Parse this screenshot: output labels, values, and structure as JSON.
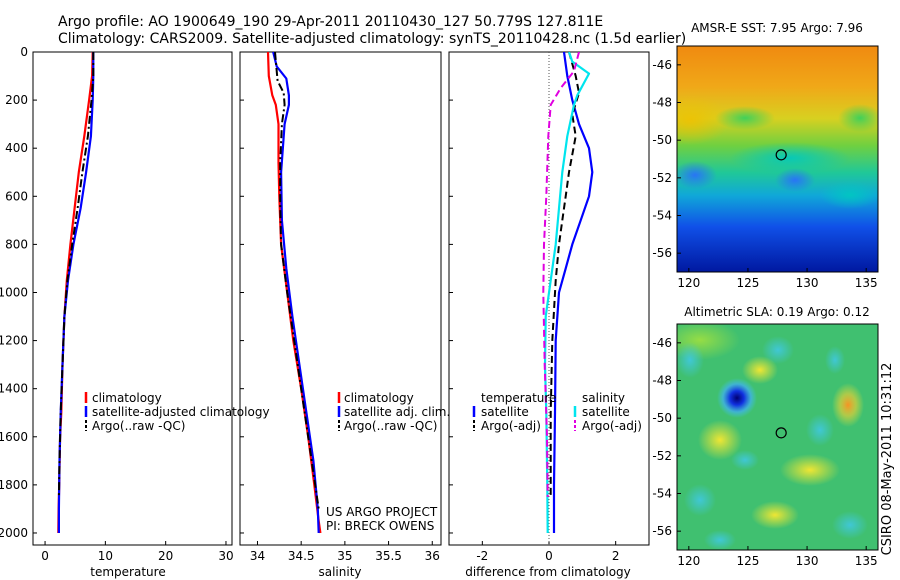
{
  "header": {
    "line1": "Argo profile: AO 1900649_190 29-Apr-2011 20110430_127 50.779S 127.811E",
    "line2": "Climatology: CARS2009. Satellite-adjusted climatology: synTS_20110428.nc (1.5d earlier)"
  },
  "side_text": "CSIRO 08-May-2011 10:31:12",
  "credit": {
    "line1": "US ARGO PROJECT",
    "line2": "PI: BRECK OWENS"
  },
  "colors": {
    "climatology": "#ff0000",
    "satellite": "#0000ff",
    "argo": "#000000",
    "sat_diff": "#00e5ee",
    "argo_diff": "#e000e0"
  },
  "chart_data": [
    {
      "type": "line",
      "xlabel": "temperature",
      "ylabel": "",
      "xlim": [
        -2,
        31
      ],
      "ylim": [
        2050,
        0
      ],
      "y_reversed": true,
      "xticks": [
        0,
        10,
        20,
        30
      ],
      "yticks": [
        0,
        200,
        400,
        600,
        800,
        1000,
        1200,
        1400,
        1600,
        1800,
        2000
      ],
      "legend": {
        "placement": "lower-right",
        "entries": [
          "climatology",
          "satellite-adjusted climatology",
          "Argo(..raw -QC)"
        ]
      },
      "series": [
        {
          "name": "climatology",
          "color": "#ff0000",
          "dash": "solid",
          "x": [
            7.9,
            7.8,
            7.3,
            6.5,
            5.6,
            4.9,
            4.2,
            3.6,
            3.2,
            2.9,
            2.7,
            2.5,
            2.35,
            2.25,
            2.2
          ],
          "y": [
            0,
            100,
            200,
            350,
            500,
            650,
            800,
            950,
            1100,
            1300,
            1500,
            1600,
            1800,
            1900,
            2000
          ]
        },
        {
          "name": "satellite-adjusted climatology",
          "color": "#0000ff",
          "dash": "solid",
          "x": [
            8.0,
            8.0,
            7.9,
            7.6,
            6.8,
            5.9,
            4.7,
            3.8,
            3.2,
            2.9,
            2.6,
            2.4,
            2.3,
            2.3
          ],
          "y": [
            0,
            100,
            200,
            350,
            500,
            650,
            800,
            950,
            1100,
            1300,
            1500,
            1700,
            1900,
            2000
          ]
        },
        {
          "name": "Argo(..raw -QC)",
          "color": "#000000",
          "dash": "dashdot",
          "x": [
            8.0,
            8.0,
            7.7,
            7.1,
            6.2,
            5.4,
            4.5,
            3.7,
            3.2,
            2.9,
            2.6,
            2.4,
            2.3
          ],
          "y": [
            0,
            100,
            200,
            350,
            500,
            650,
            800,
            950,
            1100,
            1300,
            1500,
            1700,
            1850
          ]
        }
      ]
    },
    {
      "type": "line",
      "xlabel": "salinity",
      "ylabel": "",
      "xlim": [
        33.8,
        36.1
      ],
      "ylim": [
        2050,
        0
      ],
      "y_reversed": true,
      "xticks": [
        34,
        34.5,
        35,
        35.5,
        36
      ],
      "legend": {
        "placement": "lower-right",
        "entries": [
          "climatology",
          "satellite adj. clim.",
          "Argo(..raw -QC)"
        ]
      },
      "series": [
        {
          "name": "climatology",
          "color": "#ff0000",
          "dash": "solid",
          "x": [
            34.12,
            34.13,
            34.17,
            34.21,
            34.24,
            34.24,
            34.25,
            34.27,
            34.34,
            34.41,
            34.5,
            34.58,
            34.65,
            34.7,
            34.72
          ],
          "y": [
            0,
            100,
            180,
            220,
            300,
            460,
            600,
            800,
            1000,
            1200,
            1400,
            1600,
            1800,
            1950,
            2000
          ]
        },
        {
          "name": "satellite adj. clim.",
          "color": "#0000ff",
          "dash": "solid",
          "x": [
            34.18,
            34.22,
            34.33,
            34.36,
            34.36,
            34.31,
            34.27,
            34.28,
            34.33,
            34.4,
            34.48,
            34.56,
            34.64,
            34.69,
            34.7
          ],
          "y": [
            0,
            60,
            110,
            180,
            220,
            300,
            500,
            700,
            900,
            1100,
            1300,
            1500,
            1700,
            1900,
            2000
          ]
        },
        {
          "name": "Argo(..raw -QC)",
          "color": "#000000",
          "dash": "dashdot",
          "x": [
            34.2,
            34.23,
            34.3,
            34.31,
            34.28,
            34.26,
            34.26,
            34.27,
            34.34,
            34.42,
            34.5,
            34.58,
            34.66,
            34.7
          ],
          "y": [
            0,
            120,
            170,
            220,
            300,
            460,
            620,
            800,
            1000,
            1200,
            1400,
            1600,
            1800,
            1900
          ]
        }
      ]
    },
    {
      "type": "line",
      "xlabel": "difference from climatology",
      "ylabel": "",
      "xlim": [
        -3,
        3
      ],
      "ylim": [
        2050,
        0
      ],
      "y_reversed": true,
      "xticks": [
        -2,
        0,
        2
      ],
      "zero_line": true,
      "legend": {
        "placement": "lower-center",
        "temperature_heading": "temperature",
        "salinity_heading": "salinity",
        "entries": [
          "satellite",
          "Argo(-adj)",
          "satellite",
          "Argo(-adj)"
        ]
      },
      "series": [
        {
          "name": "satellite",
          "group": "temperature",
          "color": "#0000ff",
          "dash": "solid",
          "x": [
            0.45,
            0.55,
            0.7,
            0.9,
            1.2,
            1.3,
            1.2,
            0.95,
            0.7,
            0.5,
            0.3,
            0.2,
            0.18,
            0.15,
            0.15
          ],
          "y": [
            0,
            100,
            200,
            300,
            400,
            500,
            600,
            700,
            800,
            900,
            1000,
            1200,
            1500,
            1800,
            2000
          ]
        },
        {
          "name": "Argo(-adj)",
          "group": "temperature",
          "color": "#000000",
          "dash": "dash",
          "x": [
            0.6,
            0.8,
            0.9,
            0.7,
            0.8,
            0.6,
            0.5,
            0.4,
            0.3,
            0.2,
            0.1,
            0.05,
            0.05
          ],
          "y": [
            0,
            100,
            170,
            260,
            350,
            500,
            600,
            700,
            800,
            950,
            1200,
            1500,
            1850
          ]
        },
        {
          "name": "satellite",
          "group": "salinity",
          "color": "#00e5ee",
          "dash": "solid",
          "x": [
            0.6,
            0.7,
            1.2,
            0.85,
            0.75,
            0.55,
            0.4,
            0.3,
            0.2,
            0.05,
            -0.1,
            -0.12,
            -0.08,
            -0.05,
            -0.04
          ],
          "y": [
            0,
            40,
            90,
            180,
            220,
            350,
            500,
            650,
            800,
            950,
            1100,
            1300,
            1500,
            1800,
            2000
          ]
        },
        {
          "name": "Argo(-adj)",
          "group": "salinity",
          "color": "#e000e0",
          "dash": "dash",
          "x": [
            0.9,
            0.75,
            0.35,
            0.05,
            -0.02,
            -0.08,
            -0.15,
            -0.17,
            -0.13,
            -0.06,
            -0.04
          ],
          "y": [
            0,
            80,
            150,
            220,
            350,
            600,
            800,
            1000,
            1300,
            1600,
            1850
          ]
        }
      ]
    },
    {
      "type": "heatmap",
      "title": "AMSR-E SST: 7.95 Argo: 7.96",
      "x_range": [
        119,
        136
      ],
      "y_range": [
        -57,
        -45
      ],
      "xticks": [
        120,
        125,
        130,
        135
      ],
      "yticks": [
        -46,
        -48,
        -50,
        -52,
        -54,
        -56
      ],
      "profile_location": {
        "lon": 127.811,
        "lat": -50.779
      }
    },
    {
      "type": "heatmap",
      "title": "Altimetric SLA: 0.19 Argo: 0.12",
      "x_range": [
        119,
        136
      ],
      "y_range": [
        -57,
        -45
      ],
      "xticks": [
        120,
        125,
        130,
        135
      ],
      "yticks": [
        -46,
        -48,
        -50,
        -52,
        -54,
        -56
      ],
      "profile_location": {
        "lon": 127.811,
        "lat": -50.779
      }
    }
  ]
}
